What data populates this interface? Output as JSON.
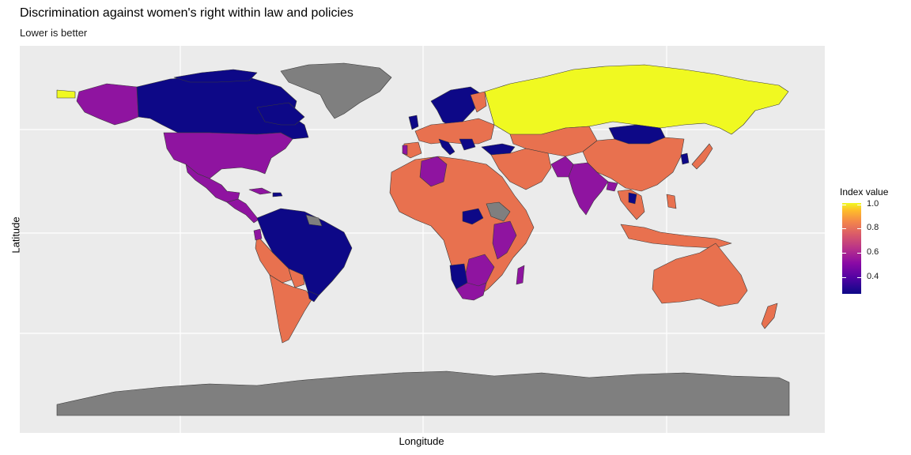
{
  "chart": {
    "title": "Discrimination against women's right within law and policies",
    "subtitle": "Lower is better",
    "xlabel": "Longitude",
    "ylabel": "Latitude"
  },
  "legend": {
    "title": "Index value",
    "ticks": [
      "1.0",
      "0.8",
      "0.6",
      "0.4"
    ]
  },
  "colors": {
    "panel_bg": "#ebebeb",
    "grid": "#ffffff",
    "no_data": "#7f7f7f",
    "low": "#0d0887",
    "purple": "#8f14a0",
    "mid": "#e8714f",
    "high": "#f0f921"
  },
  "map_data": {
    "scale": "index value, lower is better",
    "regions": [
      {
        "name": "Canada",
        "value": 0.3
      },
      {
        "name": "Alaska / Pacific NA",
        "value": 0.6
      },
      {
        "name": "United States",
        "value": 0.6
      },
      {
        "name": "Mexico",
        "value": 0.6
      },
      {
        "name": "Greenland",
        "value": null
      },
      {
        "name": "Brazil / northern South America",
        "value": 0.3
      },
      {
        "name": "Peru",
        "value": 0.8
      },
      {
        "name": "Argentina / Chile",
        "value": 0.8
      },
      {
        "name": "Russia",
        "value": 1.0
      },
      {
        "name": "Mongolia",
        "value": 0.3
      },
      {
        "name": "China",
        "value": 0.8
      },
      {
        "name": "India",
        "value": 0.6
      },
      {
        "name": "Australia",
        "value": 0.8
      },
      {
        "name": "Namibia",
        "value": 0.3
      },
      {
        "name": "South Africa",
        "value": 0.6
      },
      {
        "name": "Madagascar",
        "value": 0.6
      },
      {
        "name": "Turkey",
        "value": 0.3
      },
      {
        "name": "Antarctica",
        "value": null
      }
    ]
  }
}
